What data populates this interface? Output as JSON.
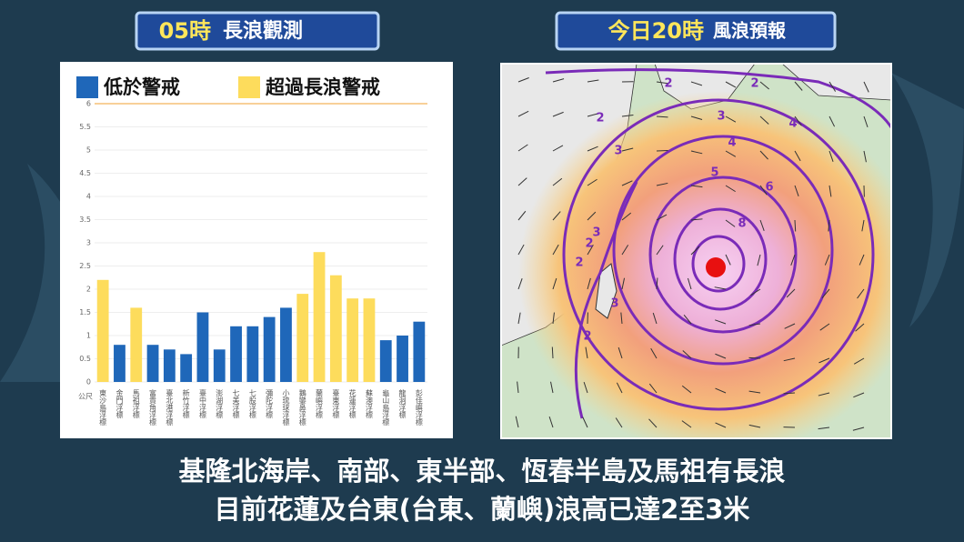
{
  "panels": {
    "left": {
      "time": "05時",
      "title": "長浪觀測"
    },
    "right": {
      "time": "今日20時",
      "title": "風浪預報"
    }
  },
  "chart_data": {
    "type": "bar",
    "unit_label": "公尺",
    "categories": [
      "東沙島浮標",
      "金門浮標",
      "馬祖浮標",
      "富貴角浮標",
      "臺北港浮標",
      "新竹浮標",
      "臺中浮標",
      "澎湖浮標",
      "七美浮標",
      "七股浮標",
      "彌陀浮標",
      "小琉球浮標",
      "鵝鑾鼻浮標",
      "蘭嶼浮標",
      "臺東浮標",
      "花蓮浮標",
      "蘇澳浮標",
      "龜山島浮標",
      "龍洞浮標",
      "彭佳嶼浮標"
    ],
    "series": [
      {
        "name": "低於警戒",
        "color": "#1f67b9",
        "values": [
          null,
          0.8,
          null,
          0.8,
          0.7,
          0.6,
          1.5,
          0.7,
          1.2,
          1.2,
          1.4,
          1.6,
          null,
          null,
          null,
          null,
          null,
          0.9,
          1.0,
          1.3
        ]
      },
      {
        "name": "超過長浪警戒",
        "color": "#fddc5c",
        "values": [
          2.2,
          null,
          1.6,
          null,
          null,
          null,
          null,
          null,
          null,
          null,
          null,
          null,
          1.9,
          2.8,
          2.3,
          1.8,
          1.8,
          null,
          null,
          null
        ]
      }
    ],
    "ylim": [
      0,
      6
    ],
    "yticks": [
      0,
      0.5,
      1,
      1.5,
      2,
      2.5,
      3,
      3.5,
      4,
      4.5,
      5,
      5.5,
      6
    ]
  },
  "map": {
    "contour_labels": [
      "2",
      "2",
      "2",
      "3",
      "4",
      "3",
      "4",
      "5",
      "6",
      "8",
      "3",
      "2",
      "2",
      "3",
      "2"
    ]
  },
  "caption": [
    "基隆北海岸、南部、東半部、恆春半島及馬祖有長浪",
    "目前花蓮及台東(台東、蘭嶼)浪高已達2至3米"
  ]
}
